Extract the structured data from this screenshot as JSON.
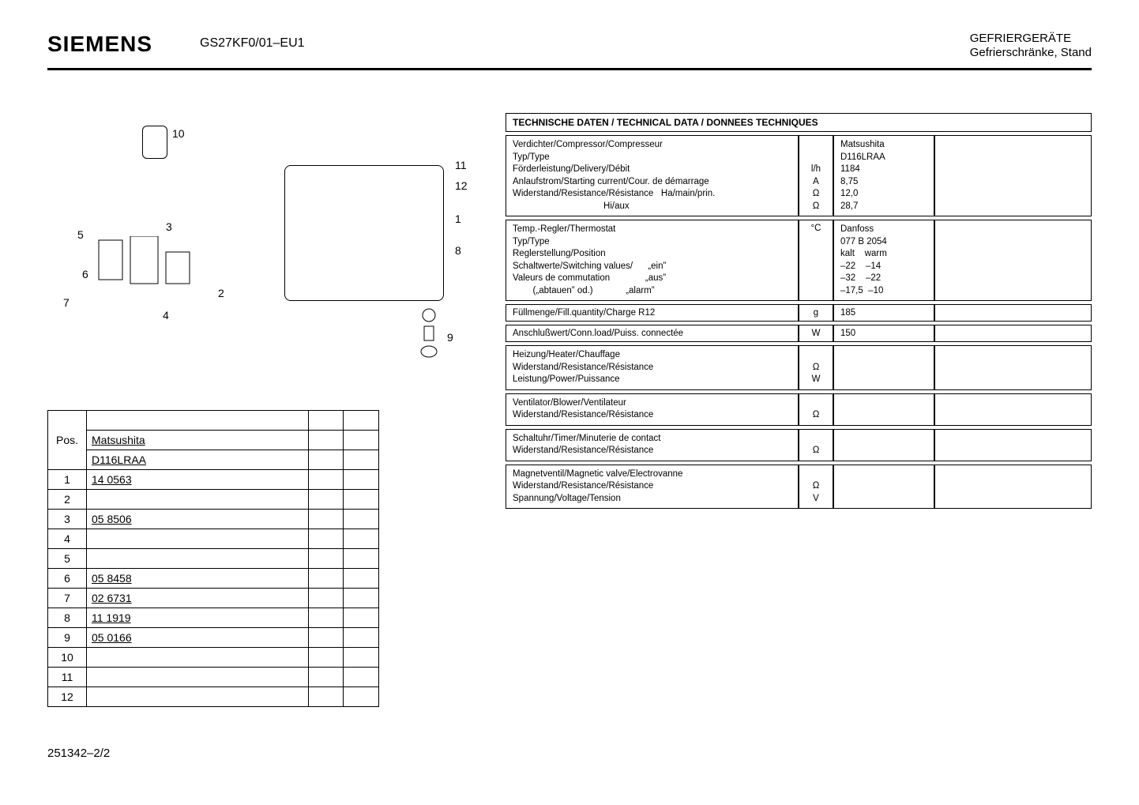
{
  "header": {
    "brand": "SIEMENS",
    "model": "GS27KF0/01–EU1",
    "right_line1": "GEFRIERGERÄTE",
    "right_line2": "Gefrierschränke, Stand"
  },
  "footer": "251342–2/2",
  "parts_table": {
    "pos_label": "Pos.",
    "header_rows": [
      "Matsushita",
      "D116LRAA"
    ],
    "rows": [
      {
        "pos": "1",
        "val": "14 0563"
      },
      {
        "pos": "2",
        "val": ""
      },
      {
        "pos": "3",
        "val": "05 8506"
      },
      {
        "pos": "4",
        "val": ""
      },
      {
        "pos": "5",
        "val": ""
      },
      {
        "pos": "6",
        "val": "05 8458"
      },
      {
        "pos": "7",
        "val": "02 6731"
      },
      {
        "pos": "8",
        "val": "11 1919"
      },
      {
        "pos": "9",
        "val": "05 0166"
      },
      {
        "pos": "10",
        "val": ""
      },
      {
        "pos": "11",
        "val": ""
      },
      {
        "pos": "12",
        "val": ""
      }
    ]
  },
  "callouts": [
    "1",
    "2",
    "3",
    "4",
    "5",
    "6",
    "7",
    "8",
    "9",
    "10",
    "11",
    "12"
  ],
  "tech": {
    "title": "TECHNISCHE DATEN / TECHNICAL DATA / DONNEES TECHNIQUES",
    "compressor": {
      "lines": [
        "Verdichter/Compressor/Compresseur",
        "Typ/Type",
        "Förderleistung/Delivery/Débit",
        "Anlaufstrom/Starting current/Cour. de démarrage",
        "Widerstand/Resistance/Résistance   Ha/main/prin.",
        "                                    Hi/aux"
      ],
      "units": [
        "",
        "",
        "l/h",
        "A",
        "Ω",
        "Ω"
      ],
      "vals": [
        "Matsushita",
        "D116LRAA",
        "1184",
        "8,75",
        "12,0",
        "28,7"
      ]
    },
    "thermostat": {
      "lines": [
        "Temp.-Regler/Thermostat",
        "Typ/Type",
        "Reglerstellung/Position",
        "Schaltwerte/Switching values/      „ein”",
        "Valeurs de commutation              „aus”",
        "        („abtauen” od.)             „alarm”"
      ],
      "unit": "°C",
      "vals": [
        "Danfoss",
        "077 B 2054",
        "kalt    warm",
        "–22    –14",
        "–32    –22",
        "–17,5  –10"
      ]
    },
    "fill": {
      "label": "Füllmenge/Fill.quantity/Charge        R12",
      "unit": "g",
      "val": "185"
    },
    "conn": {
      "label": "Anschlußwert/Conn.load/Puiss. connectée",
      "unit": "W",
      "val": "150"
    },
    "heater": {
      "l1": "Heizung/Heater/Chauffage",
      "l2": "Widerstand/Resistance/Résistance",
      "l3": "Leistung/Power/Puissance",
      "u2": "Ω",
      "u3": "W"
    },
    "fan": {
      "l1": "Ventilator/Blower/Ventilateur",
      "l2": "Widerstand/Resistance/Résistance",
      "u2": "Ω"
    },
    "timer": {
      "l1": "Schaltuhr/Timer/Minuterie de contact",
      "l2": "Widerstand/Resistance/Résistance",
      "u2": "Ω"
    },
    "valve": {
      "l1": "Magnetventil/Magnetic valve/Electrovanne",
      "l2": "Widerstand/Resistance/Résistance",
      "l3": "Spannung/Voltage/Tension",
      "u2": "Ω",
      "u3": "V"
    }
  }
}
